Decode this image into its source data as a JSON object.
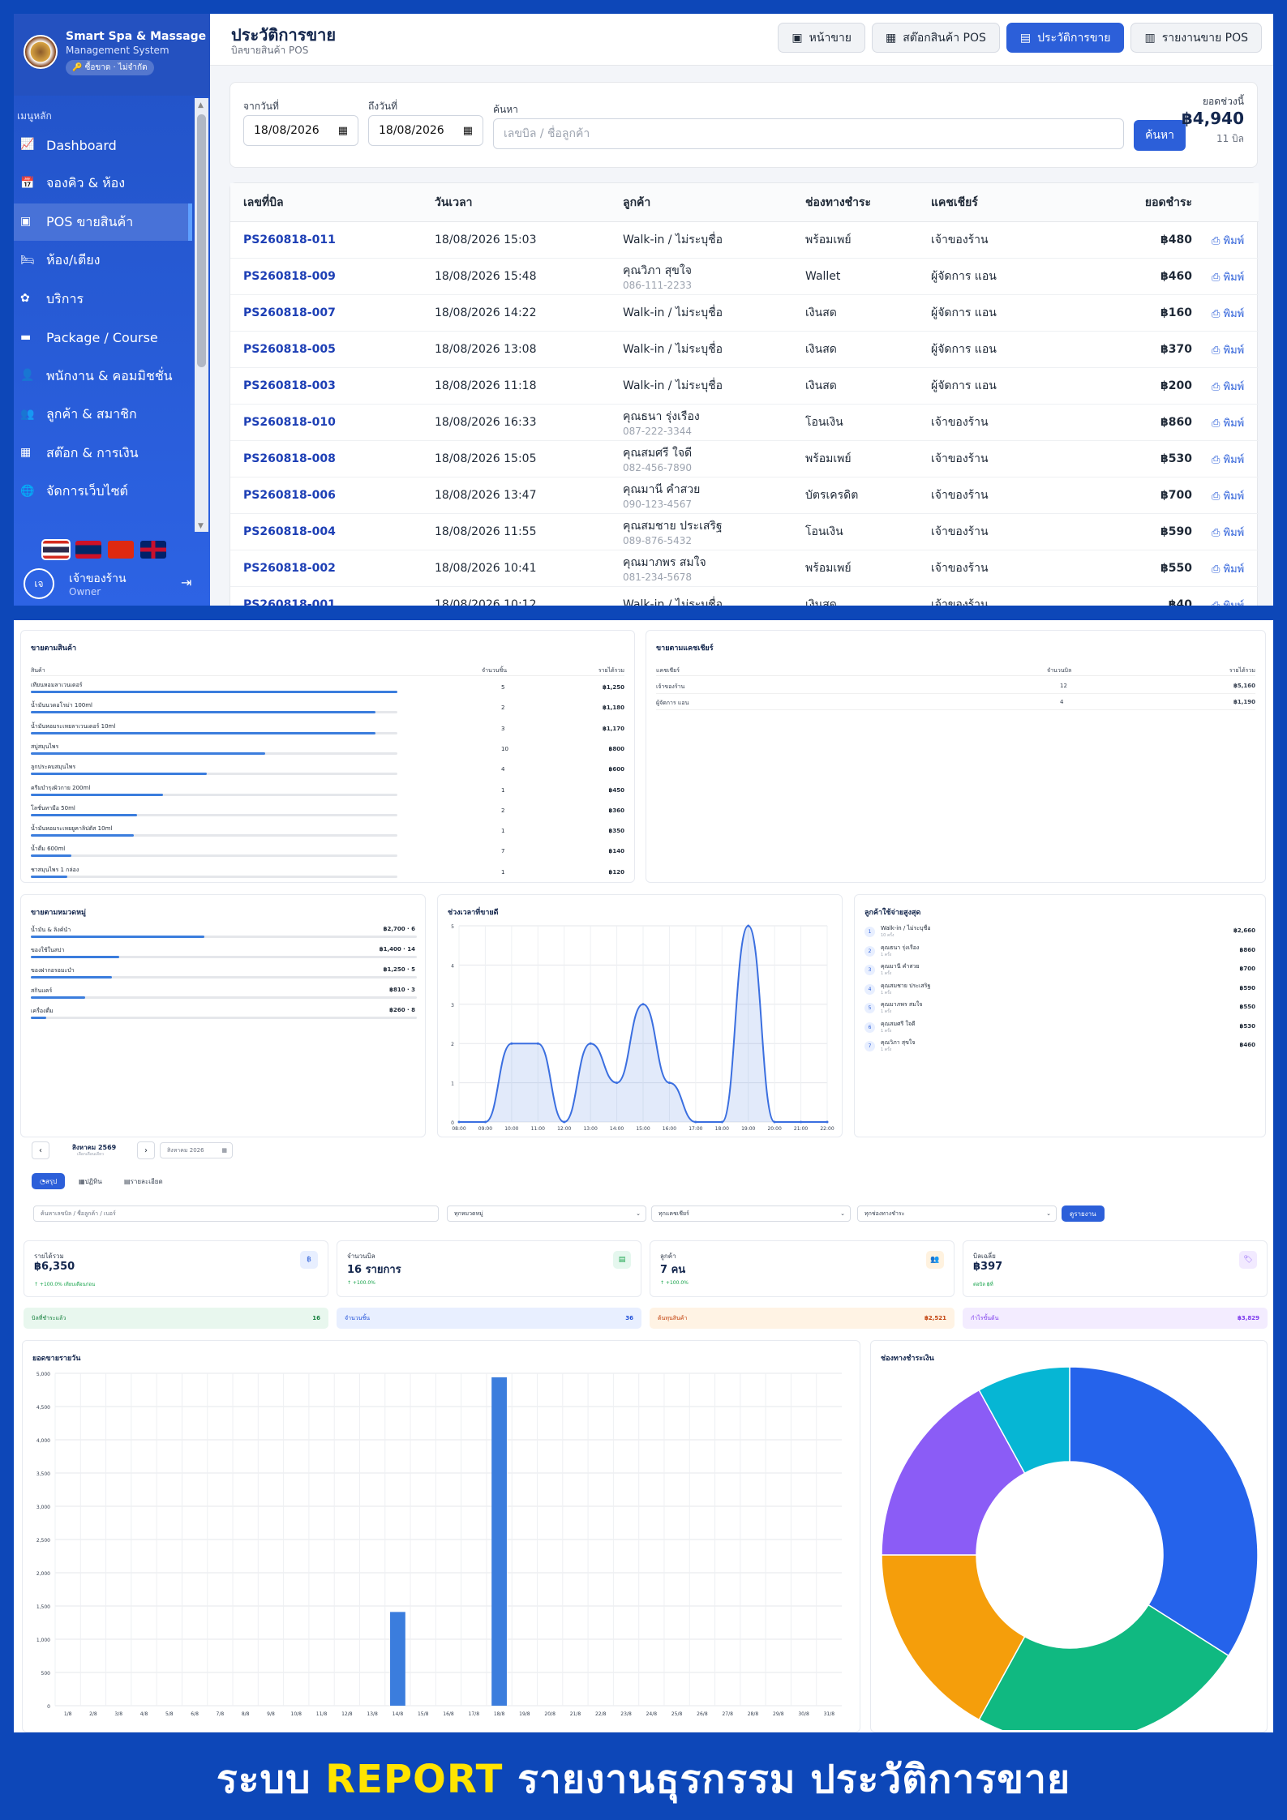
{
  "sidebar": {
    "brand_title": "Smart Spa & Massage",
    "brand_sub": "Management System",
    "brand_badge": "ซื้อขาด · ไม่จำกัด",
    "menu_header": "เมนูหลัก",
    "items": [
      {
        "label": "Dashboard",
        "icon": "chart-line-icon"
      },
      {
        "label": "จองคิว & ห้อง",
        "icon": "calendar-icon"
      },
      {
        "label": "POS ขายสินค้า",
        "icon": "cash-register-icon",
        "active": true
      },
      {
        "label": "ห้อง/เตียง",
        "icon": "bed-icon"
      },
      {
        "label": "บริการ",
        "icon": "spa-icon"
      },
      {
        "label": "Package / Course",
        "icon": "ticket-icon"
      },
      {
        "label": "พนักงาน & คอมมิชชั่น",
        "icon": "user-tie-icon"
      },
      {
        "label": "ลูกค้า & สมาชิก",
        "icon": "users-icon"
      },
      {
        "label": "สต๊อก & การเงิน",
        "icon": "boxes-icon"
      },
      {
        "label": "จัดการเว็บไซต์",
        "icon": "globe-icon"
      }
    ],
    "user": {
      "avatar": "เจ",
      "name": "เจ้าของร้าน",
      "role": "Owner"
    }
  },
  "header": {
    "title": "ประวัติการขาย",
    "subtitle": "บิลขายสินค้า POS",
    "buttons": [
      "หน้าขาย",
      "สต๊อกสินค้า POS",
      "ประวัติการขาย",
      "รายงานขาย POS"
    ]
  },
  "filter": {
    "from_label": "จากวันที่",
    "from_value": "18/08/2026",
    "to_label": "ถึงวันที่",
    "to_value": "18/08/2026",
    "search_label": "ค้นหา",
    "search_placeholder": "เลขบิล / ชื่อลูกค้า",
    "search_btn": "ค้นหา",
    "total_label": "ยอดช่วงนี้",
    "total_value": "฿4,940",
    "total_count": "11 บิล"
  },
  "table": {
    "headers": [
      "เลขที่บิล",
      "วันเวลา",
      "ลูกค้า",
      "ช่องทางชำระ",
      "แคชเชียร์",
      "ยอดชำระ"
    ],
    "print_label": "พิมพ์",
    "rows": [
      {
        "bill": "PS260818-011",
        "time": "18/08/2026 15:03",
        "customer": "Walk-in / ไม่ระบุชื่อ",
        "phone": "",
        "pay": "พร้อมเพย์",
        "cashier": "เจ้าของร้าน",
        "amount": "฿480"
      },
      {
        "bill": "PS260818-009",
        "time": "18/08/2026 15:48",
        "customer": "คุณวิภา สุขใจ",
        "phone": "086-111-2233",
        "pay": "Wallet",
        "cashier": "ผู้จัดการ แอน",
        "amount": "฿460"
      },
      {
        "bill": "PS260818-007",
        "time": "18/08/2026 14:22",
        "customer": "Walk-in / ไม่ระบุชื่อ",
        "phone": "",
        "pay": "เงินสด",
        "cashier": "ผู้จัดการ แอน",
        "amount": "฿160"
      },
      {
        "bill": "PS260818-005",
        "time": "18/08/2026 13:08",
        "customer": "Walk-in / ไม่ระบุชื่อ",
        "phone": "",
        "pay": "เงินสด",
        "cashier": "ผู้จัดการ แอน",
        "amount": "฿370"
      },
      {
        "bill": "PS260818-003",
        "time": "18/08/2026 11:18",
        "customer": "Walk-in / ไม่ระบุชื่อ",
        "phone": "",
        "pay": "เงินสด",
        "cashier": "ผู้จัดการ แอน",
        "amount": "฿200"
      },
      {
        "bill": "PS260818-010",
        "time": "18/08/2026 16:33",
        "customer": "คุณธนา รุ่งเรือง",
        "phone": "087-222-3344",
        "pay": "โอนเงิน",
        "cashier": "เจ้าของร้าน",
        "amount": "฿860"
      },
      {
        "bill": "PS260818-008",
        "time": "18/08/2026 15:05",
        "customer": "คุณสมศรี ใจดี",
        "phone": "082-456-7890",
        "pay": "พร้อมเพย์",
        "cashier": "เจ้าของร้าน",
        "amount": "฿530"
      },
      {
        "bill": "PS260818-006",
        "time": "18/08/2026 13:47",
        "customer": "คุณมานี คำสวย",
        "phone": "090-123-4567",
        "pay": "บัตรเครดิต",
        "cashier": "เจ้าของร้าน",
        "amount": "฿700"
      },
      {
        "bill": "PS260818-004",
        "time": "18/08/2026 11:55",
        "customer": "คุณสมชาย ประเสริฐ",
        "phone": "089-876-5432",
        "pay": "โอนเงิน",
        "cashier": "เจ้าของร้าน",
        "amount": "฿590"
      },
      {
        "bill": "PS260818-002",
        "time": "18/08/2026 10:41",
        "customer": "คุณมาภพร สมใจ",
        "phone": "081-234-5678",
        "pay": "พร้อมเพย์",
        "cashier": "เจ้าของร้าน",
        "amount": "฿550"
      },
      {
        "bill": "PS260818-001",
        "time": "18/08/2026 10:12",
        "customer": "Walk-in / ไม่ระบุชื่อ",
        "phone": "",
        "pay": "เงินสด",
        "cashier": "เจ้าของร้าน",
        "amount": "฿40"
      }
    ]
  },
  "products": {
    "title": "ขายตามสินค้า",
    "headers": [
      "สินค้า",
      "จำนวนชิ้น",
      "รายได้รวม"
    ],
    "rows": [
      {
        "name": "เทียนหอมลาเวนเดอร์",
        "qty": "5",
        "amount": "฿1,250",
        "pct": 1.0
      },
      {
        "name": "น้ำมันนวดอโรม่า 100ml",
        "qty": "2",
        "amount": "฿1,180",
        "pct": 0.94
      },
      {
        "name": "น้ำมันหอมระเหยลาเวนเดอร์ 10ml",
        "qty": "3",
        "amount": "฿1,170",
        "pct": 0.94
      },
      {
        "name": "สบู่สมุนไพร",
        "qty": "10",
        "amount": "฿800",
        "pct": 0.64
      },
      {
        "name": "ลูกประคบสมุนไพร",
        "qty": "4",
        "amount": "฿600",
        "pct": 0.48
      },
      {
        "name": "ครีมบำรุงผิวกาย 200ml",
        "qty": "1",
        "amount": "฿450",
        "pct": 0.36
      },
      {
        "name": "โลชั่นทามือ 50ml",
        "qty": "2",
        "amount": "฿360",
        "pct": 0.29
      },
      {
        "name": "น้ำมันหอมระเหยยูคาลิปตัส 10ml",
        "qty": "1",
        "amount": "฿350",
        "pct": 0.28
      },
      {
        "name": "น้ำดื่ม 600ml",
        "qty": "7",
        "amount": "฿140",
        "pct": 0.11
      },
      {
        "name": "ชาสมุนไพร 1 กล่อง",
        "qty": "1",
        "amount": "฿120",
        "pct": 0.1
      }
    ]
  },
  "cashiers": {
    "title": "ขายตามแคชเชียร์",
    "headers": [
      "แคชเชียร์",
      "จำนวนบิล",
      "รายได้รวม"
    ],
    "rows": [
      {
        "name": "เจ้าของร้าน",
        "bills": "12",
        "amount": "฿5,160"
      },
      {
        "name": "ผู้จัดการ แอน",
        "bills": "4",
        "amount": "฿1,190"
      }
    ]
  },
  "categories": {
    "title": "ขายตามหมวดหมู่",
    "rows": [
      {
        "name": "น้ำมัน & ลิงค์นำ",
        "value": "฿2,700 · 6",
        "pct": 0.45
      },
      {
        "name": "ของใช้ในสปา",
        "value": "฿1,400 · 14",
        "pct": 0.23
      },
      {
        "name": "ของฝากอรอมะบำ",
        "value": "฿1,250 · 5",
        "pct": 0.21
      },
      {
        "name": "สกินแคร์",
        "value": "฿810 · 3",
        "pct": 0.14
      },
      {
        "name": "เครื่องดื่ม",
        "value": "฿260 · 8",
        "pct": 0.04
      }
    ]
  },
  "hourly": {
    "title": "ช่วงเวลาที่ขายดี",
    "x_labels": [
      "08:00",
      "09:00",
      "10:00",
      "11:00",
      "12:00",
      "13:00",
      "14:00",
      "15:00",
      "16:00",
      "17:00",
      "18:00",
      "19:00",
      "20:00",
      "21:00",
      "22:00"
    ],
    "y_labels": [
      "0",
      "1",
      "2",
      "3",
      "4",
      "5"
    ],
    "values": [
      0,
      0,
      2,
      2,
      0,
      2,
      1,
      3,
      1,
      0,
      0,
      5,
      0,
      0,
      0
    ],
    "color": "#3b6fe0"
  },
  "top_customers": {
    "title": "ลูกค้าใช้จ่ายสูงสุด",
    "rows": [
      {
        "rank": "1",
        "name": "Walk-in / ไม่ระบุชื่อ",
        "sub": "10 ครั้ง",
        "amount": "฿2,660"
      },
      {
        "rank": "2",
        "name": "คุณธนา รุ่งเรือง",
        "sub": "1 ครั้ง",
        "amount": "฿860"
      },
      {
        "rank": "3",
        "name": "คุณมานี คำสวย",
        "sub": "1 ครั้ง",
        "amount": "฿700"
      },
      {
        "rank": "4",
        "name": "คุณสมชาย ประเสริฐ",
        "sub": "1 ครั้ง",
        "amount": "฿590"
      },
      {
        "rank": "5",
        "name": "คุณมาภพร สมใจ",
        "sub": "1 ครั้ง",
        "amount": "฿550"
      },
      {
        "rank": "6",
        "name": "คุณสมศรี ใจดี",
        "sub": "1 ครั้ง",
        "amount": "฿530"
      },
      {
        "rank": "7",
        "name": "คุณวิภา สุขใจ",
        "sub": "1 ครั้ง",
        "amount": "฿460"
      }
    ]
  },
  "report": {
    "month_label": "สิงหาคม 2569",
    "month_sub": "เลือกเดือนเดียว",
    "month_input": "สิงหาคม 2026",
    "tabs": [
      "สรุป",
      "ปฏิทิน",
      "รายละเอียด"
    ],
    "filter_placeholder": "ค้นหาเลขบิล / ชื่อลูกค้า / เบอร์",
    "select1": "ทุกหมวดหมู่",
    "select2": "ทุกแคชเชียร์",
    "select3": "ทุกช่องทางชำระ",
    "apply_btn": "ดูรายงาน",
    "kpis": [
      {
        "label": "รายได้รวม",
        "value": "฿6,350",
        "delta": "↑ +100.0% เทียบเดือนก่อน",
        "icon": "฿",
        "bg": "#e8efff",
        "fg": "#2c5fd9"
      },
      {
        "label": "จำนวนบิล",
        "value": "16 รายการ",
        "delta": "↑ +100.0%",
        "icon": "▤",
        "bg": "#e5f7ee",
        "fg": "#16a34a"
      },
      {
        "label": "ลูกค้า",
        "value": "7 คน",
        "delta": "↑ +100.0%",
        "icon": "👥",
        "bg": "#fff2df",
        "fg": "#f59e0b"
      },
      {
        "label": "บิลเฉลี่ย",
        "value": "฿397",
        "delta": "ต่อบิล ฿ที่",
        "icon": "🏷",
        "bg": "#f2eaff",
        "fg": "#8b5cf6"
      }
    ],
    "strips": [
      {
        "label": "บิลที่ชำระแล้ว",
        "value": "16",
        "bg": "#e8f7ee",
        "fg": "#15803d"
      },
      {
        "label": "จำนวนชิ้น",
        "value": "36",
        "bg": "#e8efff",
        "fg": "#1d4ed8"
      },
      {
        "label": "ต้นทุนสินค้า",
        "value": "฿2,521",
        "bg": "#fff3e4",
        "fg": "#c2410c"
      },
      {
        "label": "กำไรขั้นต้น",
        "value": "฿3,829",
        "bg": "#f3ecff",
        "fg": "#7c3aed"
      }
    ]
  },
  "chart_data": [
    {
      "type": "bar",
      "title": "ยอดขายรายวัน",
      "categories": [
        "1/8",
        "2/8",
        "3/8",
        "4/8",
        "5/8",
        "6/8",
        "7/8",
        "8/8",
        "9/8",
        "10/8",
        "11/8",
        "12/8",
        "13/8",
        "14/8",
        "15/8",
        "16/8",
        "17/8",
        "18/8",
        "19/8",
        "20/8",
        "21/8",
        "22/8",
        "23/8",
        "24/8",
        "25/8",
        "26/8",
        "27/8",
        "28/8",
        "29/8",
        "30/8",
        "31/8"
      ],
      "values": [
        0,
        0,
        0,
        0,
        0,
        0,
        0,
        0,
        0,
        0,
        0,
        0,
        0,
        1410,
        0,
        0,
        0,
        4940,
        0,
        0,
        0,
        0,
        0,
        0,
        0,
        0,
        0,
        0,
        0,
        0,
        0
      ],
      "y_ticks": [
        "0",
        "500",
        "1,000",
        "1,500",
        "2,000",
        "2,500",
        "3,000",
        "3,500",
        "4,000",
        "4,500",
        "5,000"
      ],
      "ylim": [
        0,
        5000
      ],
      "color": "#3b7ddd"
    },
    {
      "type": "pie",
      "title": "ช่องทางชำระเงิน",
      "values": [
        34,
        24,
        17,
        17,
        8
      ],
      "colors": [
        "#2563eb",
        "#10b981",
        "#f59e0b",
        "#8b5cf6",
        "#06b6d4"
      ]
    }
  ],
  "footer": {
    "part1": "ระบบ ",
    "part2": "REPORT",
    "part3": " รายงานธุรกรรม ประวัติการขาย"
  }
}
